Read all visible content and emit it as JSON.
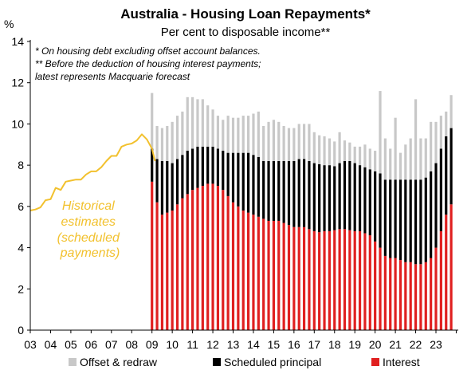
{
  "chart_data": {
    "type": "bar",
    "title": "Australia - Housing Loan Repayments*",
    "subtitle": "Per cent to disposable income**",
    "notes": [
      "* On housing debt excluding offset account balances.",
      "** Before the deduction of housing interest payments;",
      "latest represents Macquarie forecast"
    ],
    "y_unit": "%",
    "ylim": [
      0,
      14
    ],
    "y_ticks": [
      "0",
      "2",
      "4",
      "6",
      "8",
      "10",
      "12",
      "14"
    ],
    "x_tick_labels": [
      "03",
      "04",
      "05",
      "06",
      "07",
      "08",
      "09",
      "10",
      "11",
      "12",
      "13",
      "14",
      "15",
      "16",
      "17",
      "18",
      "19",
      "20",
      "21",
      "22",
      "23"
    ],
    "xlim": [
      2003,
      2024.1
    ],
    "grid": false,
    "legend_position": "bottom",
    "colors": {
      "offset": "#C8C8C8",
      "principal": "#000000",
      "interest": "#E02020",
      "historical": "#F2C12E"
    },
    "historical_label": [
      "Historical",
      "estimates",
      "(scheduled",
      "payments)"
    ],
    "historical_series": {
      "name": "Historical estimates (scheduled payments)",
      "x": [
        2003.0,
        2003.25,
        2003.5,
        2003.75,
        2004.0,
        2004.25,
        2004.5,
        2004.75,
        2005.0,
        2005.25,
        2005.5,
        2005.75,
        2006.0,
        2006.25,
        2006.5,
        2006.75,
        2007.0,
        2007.25,
        2007.5,
        2007.75,
        2008.0,
        2008.25,
        2008.5,
        2008.75,
        2009.0,
        2009.15
      ],
      "values": [
        5.8,
        5.85,
        5.95,
        6.3,
        6.35,
        6.9,
        6.8,
        7.2,
        7.25,
        7.3,
        7.3,
        7.55,
        7.7,
        7.7,
        7.9,
        8.2,
        8.45,
        8.45,
        8.9,
        9.0,
        9.05,
        9.2,
        9.5,
        9.25,
        8.8,
        8.2
      ]
    },
    "stacked_series": {
      "x": [
        2009.0,
        2009.25,
        2009.5,
        2009.75,
        2010.0,
        2010.25,
        2010.5,
        2010.75,
        2011.0,
        2011.25,
        2011.5,
        2011.75,
        2012.0,
        2012.25,
        2012.5,
        2012.75,
        2013.0,
        2013.25,
        2013.5,
        2013.75,
        2014.0,
        2014.25,
        2014.5,
        2014.75,
        2015.0,
        2015.25,
        2015.5,
        2015.75,
        2016.0,
        2016.25,
        2016.5,
        2016.75,
        2017.0,
        2017.25,
        2017.5,
        2017.75,
        2018.0,
        2018.25,
        2018.5,
        2018.75,
        2019.0,
        2019.25,
        2019.5,
        2019.75,
        2020.0,
        2020.25,
        2020.5,
        2020.75,
        2021.0,
        2021.25,
        2021.5,
        2021.75,
        2022.0,
        2022.25,
        2022.5,
        2022.75,
        2023.0,
        2023.25,
        2023.5,
        2023.75
      ],
      "series": [
        {
          "name": "Interest",
          "values": [
            7.2,
            6.2,
            5.6,
            5.7,
            5.8,
            6.1,
            6.4,
            6.6,
            6.8,
            6.9,
            7.0,
            7.1,
            7.1,
            7.0,
            6.8,
            6.5,
            6.2,
            6.0,
            5.8,
            5.7,
            5.6,
            5.5,
            5.4,
            5.3,
            5.3,
            5.3,
            5.2,
            5.1,
            5.0,
            5.0,
            5.0,
            4.9,
            4.8,
            4.75,
            4.8,
            4.8,
            4.85,
            4.9,
            4.9,
            4.85,
            4.8,
            4.8,
            4.7,
            4.6,
            4.3,
            4.0,
            3.6,
            3.5,
            3.5,
            3.4,
            3.3,
            3.3,
            3.2,
            3.2,
            3.3,
            3.5,
            4.0,
            4.8,
            5.6,
            6.1
          ]
        },
        {
          "name": "Scheduled principal",
          "values": [
            1.6,
            2.1,
            2.6,
            2.5,
            2.3,
            2.2,
            2.1,
            2.1,
            2.0,
            2.0,
            1.9,
            1.8,
            1.8,
            1.8,
            1.9,
            2.1,
            2.4,
            2.6,
            2.8,
            2.9,
            2.9,
            2.9,
            2.8,
            2.9,
            2.9,
            2.9,
            3.0,
            3.1,
            3.2,
            3.3,
            3.3,
            3.3,
            3.3,
            3.3,
            3.2,
            3.2,
            3.1,
            3.2,
            3.3,
            3.35,
            3.3,
            3.2,
            3.2,
            3.2,
            3.4,
            3.6,
            3.7,
            3.8,
            3.8,
            3.9,
            4.0,
            4.0,
            4.1,
            4.1,
            4.1,
            4.2,
            4.1,
            4.0,
            3.8,
            3.7
          ]
        },
        {
          "name": "Offset & redraw",
          "values": [
            2.7,
            1.6,
            1.6,
            1.7,
            2.0,
            2.1,
            2.1,
            2.6,
            2.5,
            2.3,
            2.3,
            2.0,
            1.8,
            1.6,
            1.5,
            1.8,
            1.7,
            1.7,
            1.8,
            1.8,
            2.0,
            2.2,
            1.7,
            1.9,
            2.0,
            1.9,
            1.7,
            1.6,
            1.6,
            1.7,
            1.7,
            1.8,
            1.5,
            1.4,
            1.4,
            1.3,
            1.2,
            1.5,
            1.0,
            0.9,
            0.8,
            0.9,
            1.1,
            1.0,
            1.0,
            4.0,
            2.0,
            1.5,
            3.0,
            1.3,
            1.7,
            2.0,
            3.9,
            2.0,
            1.9,
            2.4,
            2.0,
            1.6,
            1.2,
            1.6
          ]
        }
      ]
    },
    "legend": [
      "Offset & redraw",
      "Scheduled principal",
      "Interest"
    ]
  }
}
